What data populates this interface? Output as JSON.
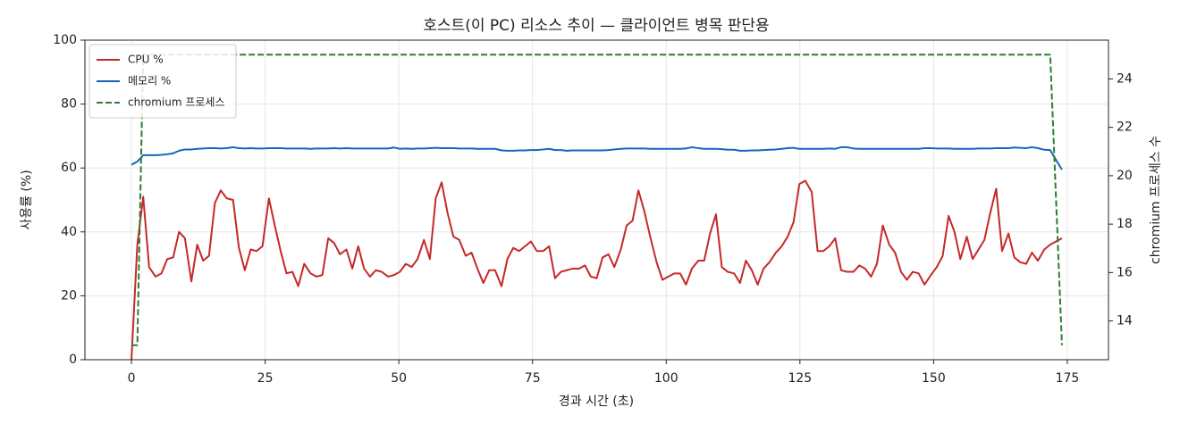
{
  "chart_data": {
    "type": "line",
    "title": "호스트(이 PC) 리소스 추이 — 클라이언트 병목 판단용",
    "x_label": "경과 시간 (초)",
    "y_label": "사용률 (%)",
    "y2_label": "chromium 프로세스 수",
    "xlim": [
      -8.7,
      182.7
    ],
    "xticks": [
      0,
      25,
      50,
      75,
      100,
      125,
      150,
      175
    ],
    "ylim": [
      0,
      100
    ],
    "yticks": [
      0,
      20,
      40,
      60,
      80,
      100
    ],
    "y2lim": [
      12.4,
      25.6
    ],
    "y2ticks": [
      14,
      16,
      18,
      20,
      22,
      24
    ],
    "grid": true,
    "legend": "upper-left",
    "x": [
      0,
      1.1,
      2.2,
      3.3,
      4.5,
      5.6,
      6.7,
      7.8,
      8.9,
      10.0,
      11.2,
      12.3,
      13.4,
      14.5,
      15.6,
      16.7,
      17.8,
      19.0,
      20.1,
      21.2,
      22.3,
      23.4,
      24.5,
      25.7,
      26.8,
      27.9,
      29.0,
      30.1,
      31.2,
      32.3,
      33.5,
      34.6,
      35.7,
      36.8,
      37.9,
      39.0,
      40.2,
      41.3,
      42.4,
      43.5,
      44.6,
      45.7,
      46.8,
      48.0,
      49.1,
      50.2,
      51.3,
      52.4,
      53.5,
      54.7,
      55.8,
      56.9,
      58.0,
      59.1,
      60.2,
      61.3,
      62.5,
      63.6,
      64.7,
      65.8,
      66.9,
      68.0,
      69.2,
      70.3,
      71.4,
      72.5,
      73.6,
      74.7,
      75.8,
      77.0,
      78.1,
      79.2,
      80.3,
      81.4,
      82.5,
      83.7,
      84.8,
      85.9,
      87.0,
      88.1,
      89.2,
      90.3,
      91.5,
      92.6,
      93.7,
      94.8,
      95.9,
      97.0,
      98.2,
      99.3,
      100.4,
      101.5,
      102.6,
      103.7,
      104.8,
      106.0,
      107.1,
      108.2,
      109.3,
      110.4,
      111.5,
      112.7,
      113.8,
      114.9,
      116.0,
      117.1,
      118.2,
      119.3,
      120.5,
      121.6,
      122.7,
      123.8,
      124.9,
      126.0,
      127.2,
      128.3,
      129.4,
      130.5,
      131.6,
      132.7,
      133.8,
      135.0,
      136.1,
      137.2,
      138.3,
      139.4,
      140.5,
      141.7,
      142.8,
      143.9,
      145.0,
      146.1,
      147.2,
      148.3,
      149.5,
      150.6,
      151.7,
      152.8,
      153.9,
      155.0,
      156.2,
      157.3,
      158.4,
      159.5,
      160.6,
      161.7,
      162.8,
      164.0,
      165.1,
      166.2,
      167.3,
      168.4,
      169.5,
      170.7,
      171.8,
      172.9,
      174.0
    ],
    "series": [
      {
        "name": "CPU %",
        "color": "#c62828",
        "dash": false,
        "values": [
          0,
          36,
          51,
          29,
          26,
          27,
          31.5,
          32,
          40,
          38,
          24.5,
          36,
          31,
          32.5,
          49,
          53,
          50.5,
          50,
          35,
          28,
          34.5,
          34,
          35.5,
          50.5,
          42,
          34,
          27,
          27.5,
          23,
          30,
          27,
          26,
          26.5,
          38,
          36.5,
          33,
          34.5,
          28.5,
          35.5,
          28.5,
          26,
          28,
          27.5,
          26,
          26.5,
          27.5,
          30,
          29,
          31.5,
          37.5,
          31.5,
          50.5,
          55.5,
          46,
          38.5,
          37.5,
          32.5,
          33.5,
          28.5,
          24,
          28,
          28,
          23,
          31.5,
          35,
          34,
          35.5,
          37,
          34,
          34,
          35.5,
          25.5,
          27.5,
          28,
          28.5,
          28.5,
          29.5,
          26,
          25.5,
          32,
          33,
          29,
          34.5,
          42,
          43.5,
          53,
          46.5,
          38.5,
          30.5,
          25,
          26,
          27,
          27,
          23.5,
          28.5,
          31,
          31,
          39.5,
          45.5,
          29,
          27.5,
          27,
          24,
          31,
          28,
          23.5,
          28.5,
          30.5,
          33.5,
          35.5,
          38.5,
          43,
          55,
          56,
          52.5,
          34,
          34,
          35.5,
          38,
          28,
          27.5,
          27.5,
          29.5,
          28.5,
          26,
          30,
          42,
          36,
          33.5,
          27.5,
          25,
          27.5,
          27,
          23.5,
          26.5,
          29,
          32.5,
          45,
          40,
          31.5,
          38.5,
          31.5,
          34.5,
          37.5,
          46,
          53.5,
          34,
          39.5,
          32,
          30.5,
          30,
          33.5,
          31,
          34.5,
          36,
          37,
          38
        ]
      },
      {
        "name": "메모리 %",
        "color": "#1565c0",
        "dash": false,
        "values": [
          61,
          62,
          64,
          64,
          64,
          64.1,
          64.3,
          64.6,
          65.4,
          65.8,
          65.8,
          66,
          66.1,
          66.2,
          66.2,
          66.1,
          66.2,
          66.5,
          66.2,
          66.1,
          66.2,
          66.1,
          66.1,
          66.2,
          66.2,
          66.2,
          66.1,
          66.1,
          66.1,
          66.1,
          66,
          66.1,
          66.1,
          66.1,
          66.2,
          66.1,
          66.2,
          66.1,
          66.1,
          66.1,
          66.1,
          66.1,
          66.1,
          66.1,
          66.4,
          66,
          66.1,
          66,
          66.1,
          66.1,
          66.2,
          66.3,
          66.2,
          66.2,
          66.2,
          66.1,
          66.1,
          66.1,
          66,
          66,
          66,
          66,
          65.5,
          65.4,
          65.4,
          65.5,
          65.5,
          65.6,
          65.6,
          65.8,
          66,
          65.6,
          65.6,
          65.4,
          65.5,
          65.5,
          65.5,
          65.5,
          65.5,
          65.5,
          65.6,
          65.8,
          66,
          66.1,
          66.1,
          66.1,
          66.1,
          66,
          66,
          66,
          66,
          66,
          66,
          66.1,
          66.5,
          66.2,
          66,
          66,
          66,
          65.9,
          65.7,
          65.7,
          65.4,
          65.4,
          65.5,
          65.5,
          65.6,
          65.7,
          65.8,
          66,
          66.2,
          66.3,
          66,
          66,
          66,
          66,
          66,
          66.1,
          66,
          66.5,
          66.5,
          66.1,
          66,
          66,
          66,
          66,
          66,
          66,
          66,
          66,
          66,
          66,
          66,
          66.2,
          66.2,
          66.1,
          66.1,
          66.1,
          66,
          66,
          66,
          66,
          66.1,
          66.1,
          66.1,
          66.2,
          66.2,
          66.2,
          66.4,
          66.3,
          66.2,
          66.5,
          66.2,
          65.7,
          65.6,
          62.5,
          59.5
        ]
      },
      {
        "name": "chromium 프로세스",
        "color": "#2e7d32",
        "dash": true,
        "axis": "y2",
        "values": [
          13,
          13,
          25,
          25,
          25,
          25,
          25,
          25,
          25,
          25,
          25,
          25,
          25,
          25,
          25,
          25,
          25,
          25,
          25,
          25,
          25,
          25,
          25,
          25,
          25,
          25,
          25,
          25,
          25,
          25,
          25,
          25,
          25,
          25,
          25,
          25,
          25,
          25,
          25,
          25,
          25,
          25,
          25,
          25,
          25,
          25,
          25,
          25,
          25,
          25,
          25,
          25,
          25,
          25,
          25,
          25,
          25,
          25,
          25,
          25,
          25,
          25,
          25,
          25,
          25,
          25,
          25,
          25,
          25,
          25,
          25,
          25,
          25,
          25,
          25,
          25,
          25,
          25,
          25,
          25,
          25,
          25,
          25,
          25,
          25,
          25,
          25,
          25,
          25,
          25,
          25,
          25,
          25,
          25,
          25,
          25,
          25,
          25,
          25,
          25,
          25,
          25,
          25,
          25,
          25,
          25,
          25,
          25,
          25,
          25,
          25,
          25,
          25,
          25,
          25,
          25,
          25,
          25,
          25,
          25,
          25,
          25,
          25,
          25,
          25,
          25,
          25,
          25,
          25,
          25,
          25,
          25,
          25,
          25,
          25,
          25,
          25,
          25,
          25,
          25,
          25,
          25,
          25,
          25,
          25,
          25,
          25,
          25,
          25,
          25,
          25,
          25,
          25,
          25,
          25,
          19,
          13
        ]
      }
    ]
  }
}
